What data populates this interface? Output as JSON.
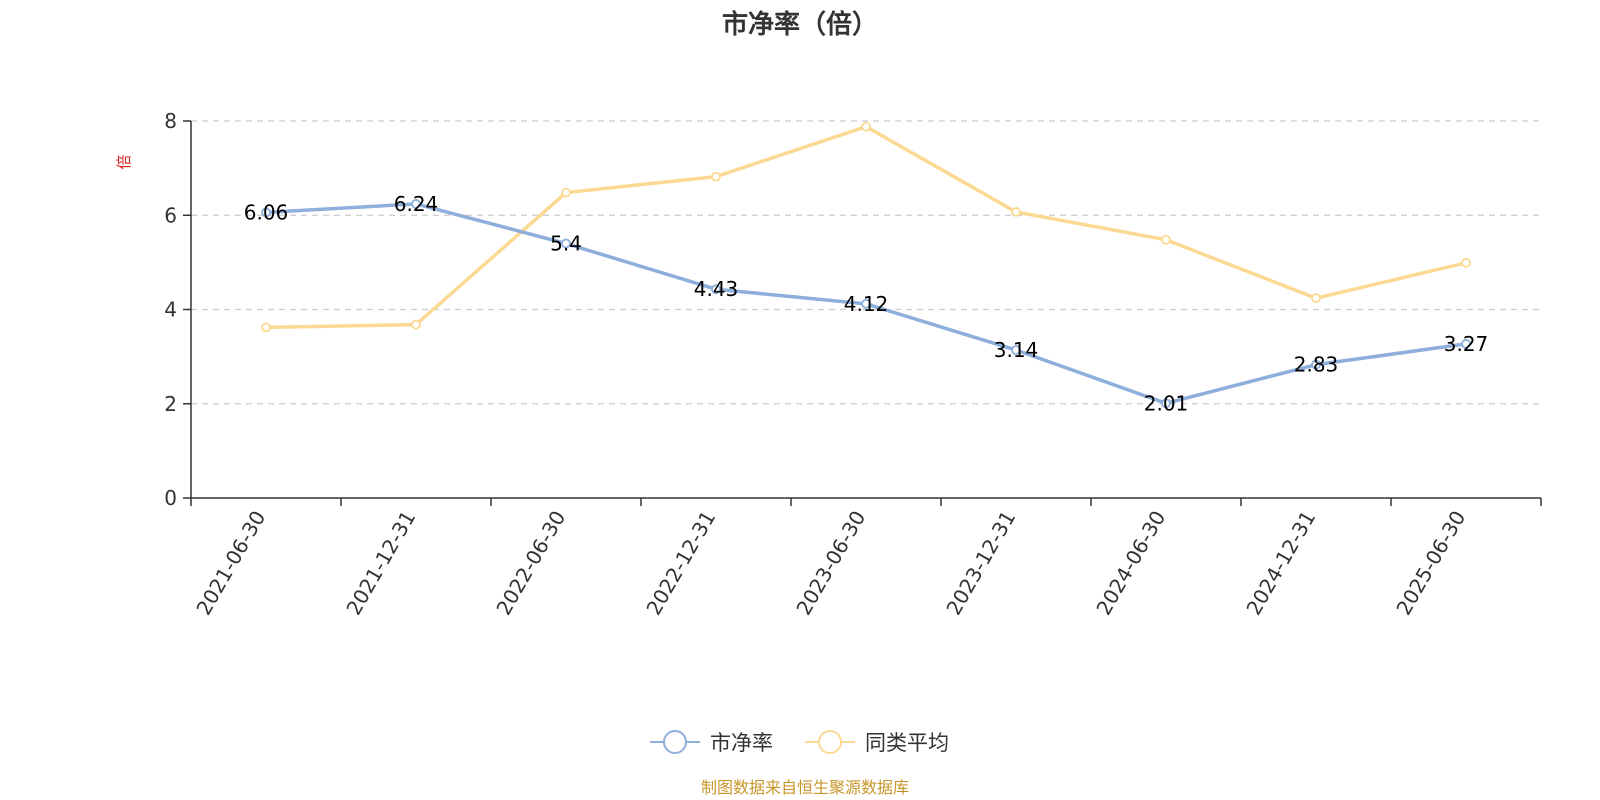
{
  "chart_data": {
    "type": "line",
    "title": "市净率（倍）",
    "ylabel": "倍",
    "xlabel": "",
    "categories": [
      "2021-06-30",
      "2021-12-31",
      "2022-06-30",
      "2022-12-31",
      "2023-06-30",
      "2023-12-31",
      "2024-06-30",
      "2024-12-31",
      "2025-06-30"
    ],
    "ylim": [
      0,
      8
    ],
    "yticks": [
      0,
      2,
      4,
      6,
      8
    ],
    "grid": true,
    "legend_position": "bottom-center",
    "series": [
      {
        "name": "市净率",
        "color": "#8eaedb",
        "values": [
          6.06,
          6.24,
          5.4,
          4.43,
          4.12,
          3.14,
          2.01,
          2.83,
          3.27
        ],
        "data_labels": [
          "6.06",
          "6.24",
          "5.4",
          "4.43",
          "4.12",
          "3.14",
          "2.01",
          "2.83",
          "3.27"
        ]
      },
      {
        "name": "同类平均",
        "color": "#fcd993",
        "values": [
          3.62,
          3.68,
          6.48,
          6.82,
          7.88,
          6.07,
          5.48,
          4.24,
          4.99
        ]
      }
    ]
  },
  "colors": {
    "axis": "#333333",
    "grid": "#cccccc",
    "ylabel": "#e02020",
    "source": "#c8962a"
  },
  "source_text": "制图数据来自恒生聚源数据库"
}
